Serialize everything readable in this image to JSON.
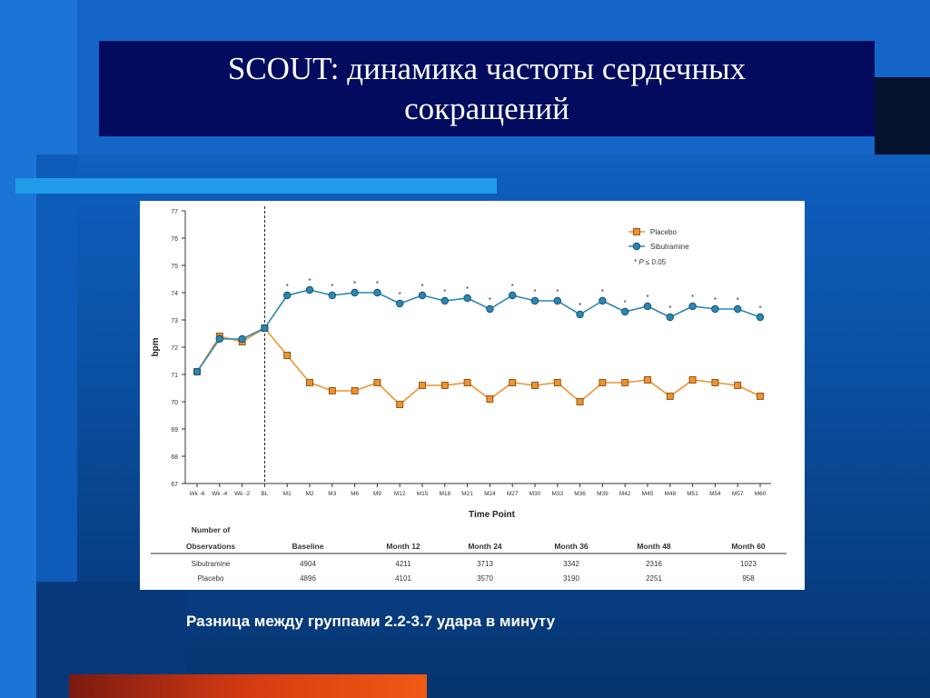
{
  "slide": {
    "title": "SCOUT: динамика  частоты сердечных\nсокращений",
    "caption": "Разница между группами 2.2-3.7  удара в минуту"
  },
  "colors": {
    "placebo": "#f0922e",
    "sibutramine": "#2b86b3",
    "title_bg": "#020b5e",
    "cyan_bar": "#1f9be8"
  },
  "chart_data": {
    "type": "line",
    "xlabel": "Time Point",
    "ylabel": "bpm",
    "ylim": [
      67,
      77
    ],
    "yticks": [
      67,
      68,
      69,
      70,
      71,
      72,
      73,
      74,
      75,
      76,
      77
    ],
    "categories": [
      "Wk -6",
      "Wk -4",
      "Wk -2",
      "BL",
      "M1",
      "M2",
      "M3",
      "M6",
      "M9",
      "M12",
      "M15",
      "M18",
      "M21",
      "M24",
      "M27",
      "M30",
      "M33",
      "M36",
      "M39",
      "M42",
      "M45",
      "M48",
      "M51",
      "M54",
      "M57",
      "M60"
    ],
    "baseline_marker": "BL",
    "series": [
      {
        "name": "Placebo",
        "values": [
          71.1,
          72.4,
          72.2,
          72.7,
          71.7,
          70.7,
          70.4,
          70.4,
          70.7,
          69.9,
          70.6,
          70.6,
          70.7,
          70.1,
          70.7,
          70.6,
          70.7,
          70.0,
          70.7,
          70.7,
          70.8,
          70.2,
          70.8,
          70.7,
          70.6,
          70.2
        ]
      },
      {
        "name": "Sibutramine",
        "values": [
          71.1,
          72.3,
          72.3,
          72.7,
          73.9,
          74.1,
          73.9,
          74.0,
          74.0,
          73.6,
          73.9,
          73.7,
          73.8,
          73.4,
          73.9,
          73.7,
          73.7,
          73.2,
          73.7,
          73.3,
          73.5,
          73.1,
          73.5,
          73.4,
          73.4,
          73.1
        ]
      }
    ],
    "significance_marks": [
      "M1",
      "M2",
      "M3",
      "M6",
      "M9",
      "M12",
      "M15",
      "M18",
      "M21",
      "M24",
      "M27",
      "M30",
      "M33",
      "M36",
      "M39",
      "M42",
      "M45",
      "M48",
      "M51",
      "M54",
      "M57",
      "M60"
    ],
    "significance_symbol": "*",
    "legend": {
      "position": "top-right",
      "entries": [
        "Placebo",
        "Sibutramine"
      ],
      "note_prefix": "* ",
      "note_p": "P",
      "note_suffix": " ≤ 0.05"
    },
    "observations_table": {
      "header_line1": "Number of",
      "header_line2": "Observations",
      "columns": [
        "Baseline",
        "Month 12",
        "Month 24",
        "Month 36",
        "Month 48",
        "Month 60"
      ],
      "rows": [
        {
          "label": "Sibutramine",
          "values": [
            "4904",
            "4211",
            "3713",
            "3342",
            "2316",
            "1023"
          ]
        },
        {
          "label": "Placebo",
          "values": [
            "4896",
            "4101",
            "3570",
            "3190",
            "2251",
            "958"
          ]
        }
      ]
    }
  }
}
